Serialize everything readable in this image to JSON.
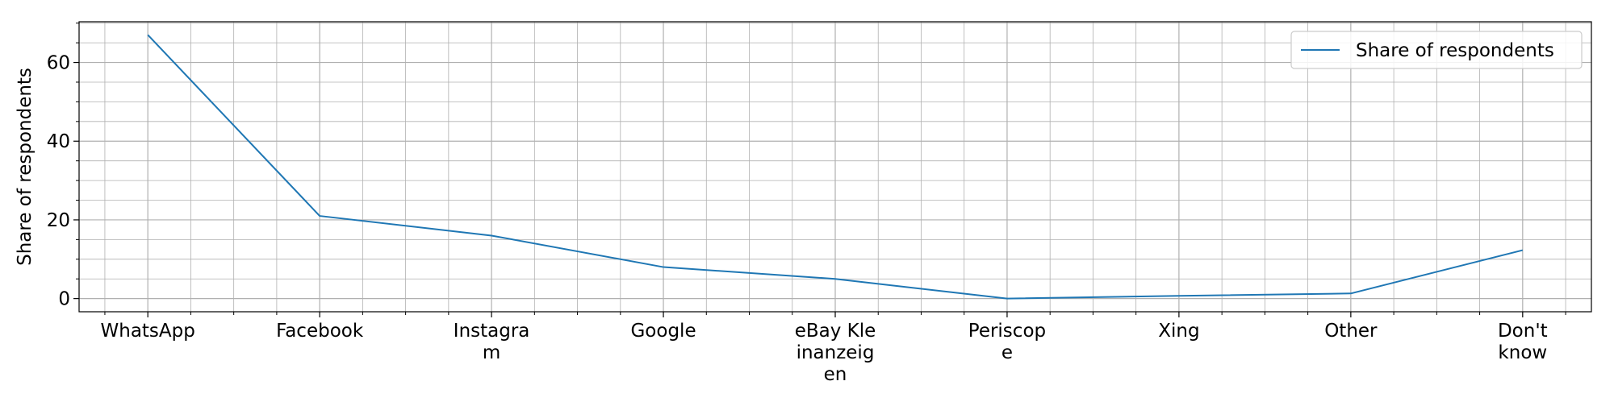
{
  "chart_data": {
    "type": "line",
    "title": "",
    "xlabel": "",
    "ylabel": "Share of respondents",
    "categories": [
      "WhatsApp",
      "Facebook",
      "Instagram",
      "Google",
      "eBay Kleinanzeigen",
      "Periscope",
      "Xing",
      "Other",
      "Don't know"
    ],
    "category_tick_lines": [
      [
        "WhatsApp"
      ],
      [
        "Facebook"
      ],
      [
        "Instagra",
        "m"
      ],
      [
        "Google"
      ],
      [
        "eBay Kle",
        "inanzeig",
        "en"
      ],
      [
        "Periscop",
        "e"
      ],
      [
        "Xing"
      ],
      [
        "Other"
      ],
      [
        "Don't",
        "know"
      ]
    ],
    "series": [
      {
        "name": "Share of respondents",
        "color": "#1f77b4",
        "values": [
          67,
          21,
          16,
          8,
          5,
          0,
          0.7,
          1.3,
          12.3
        ]
      }
    ],
    "ylim": [
      -3.35,
      70.35
    ],
    "yticks": [
      0,
      20,
      40,
      60
    ],
    "ytick_labels": [
      "0",
      "20",
      "40",
      "60"
    ],
    "grid": true,
    "minor_grid": true,
    "legend_position": "top-right",
    "colors": {
      "grid_major": "#b0b0b0",
      "grid_minor": "#b0b0b0",
      "axes": "#000000"
    }
  }
}
